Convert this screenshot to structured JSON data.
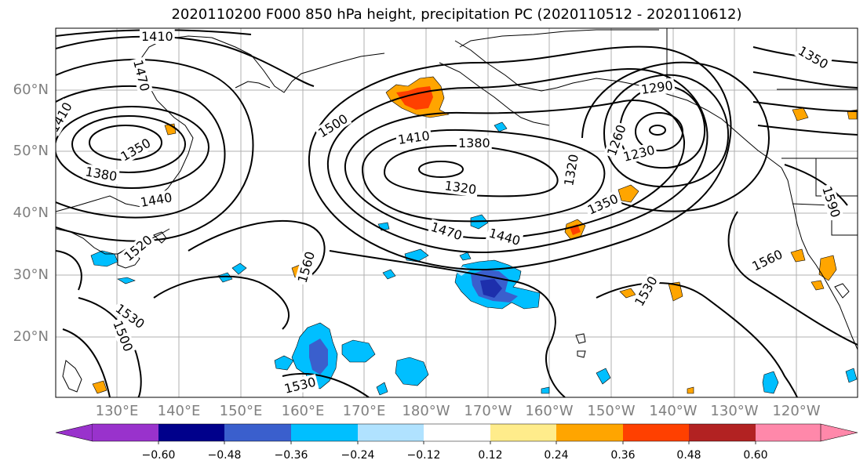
{
  "title": "2020110200 F000 850 hPa height, precipitation PC (2020110512 - 2020110612)",
  "lat_labels": [
    "60°N",
    "50°N",
    "40°N",
    "30°N",
    "20°N"
  ],
  "lon_labels": [
    "130°E",
    "140°E",
    "150°E",
    "160°E",
    "170°E",
    "180°W",
    "170°W",
    "160°W",
    "150°W",
    "140°W",
    "130°W",
    "120°W"
  ],
  "contour_labels": [
    "1410",
    "1470",
    "1410",
    "1350",
    "1380",
    "1440",
    "1500",
    "1410",
    "1380",
    "1320",
    "1470",
    "1440",
    "1290",
    "1260",
    "1230",
    "1320",
    "1350",
    "1590",
    "1560",
    "1530",
    "1530",
    "1500",
    "1560",
    "1350",
    "1530",
    "1520"
  ],
  "colorbar": {
    "colors": [
      "#9932cc",
      "#00008b",
      "#3a5fcd",
      "#00bfff",
      "#b0e2ff",
      "#ffffff",
      "#ffec8b",
      "#ffa500",
      "#ff4000",
      "#b22222",
      "#ff88aa"
    ],
    "ticks": [
      "−0.60",
      "−0.48",
      "−0.36",
      "−0.24",
      "−0.12",
      "0.12",
      "0.24",
      "0.36",
      "0.48",
      "0.60"
    ]
  }
}
